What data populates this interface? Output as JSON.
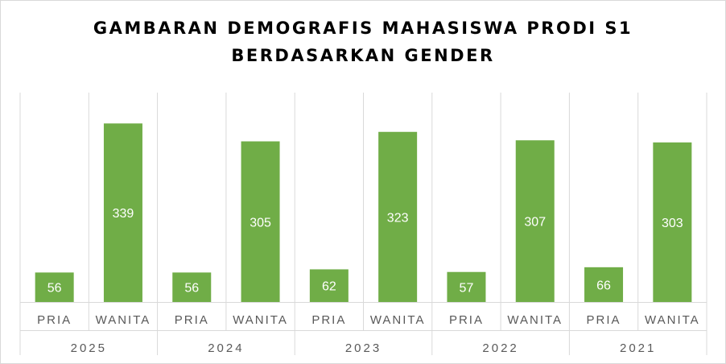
{
  "chart_data": {
    "type": "bar",
    "title_lines": [
      "GAMBARAN DEMOGRAFIS MAHASISWA PRODI S1",
      "BERDASARKAN GENDER"
    ],
    "groups": [
      {
        "year": "2025",
        "bars": [
          {
            "label": "PRIA",
            "value": 56
          },
          {
            "label": "WANITA",
            "value": 339
          }
        ]
      },
      {
        "year": "2024",
        "bars": [
          {
            "label": "PRIA",
            "value": 56
          },
          {
            "label": "WANITA",
            "value": 305
          }
        ]
      },
      {
        "year": "2023",
        "bars": [
          {
            "label": "PRIA",
            "value": 62
          },
          {
            "label": "WANITA",
            "value": 323
          }
        ]
      },
      {
        "year": "2022",
        "bars": [
          {
            "label": "PRIA",
            "value": 57
          },
          {
            "label": "WANITA",
            "value": 307
          }
        ]
      },
      {
        "year": "2021",
        "bars": [
          {
            "label": "PRIA",
            "value": 66
          },
          {
            "label": "WANITA",
            "value": 303
          }
        ]
      }
    ],
    "ylim": [
      0,
      400
    ],
    "bar_color": "#70ad47",
    "label_color": "#ffffff",
    "grid": "vertical-category-lines"
  }
}
